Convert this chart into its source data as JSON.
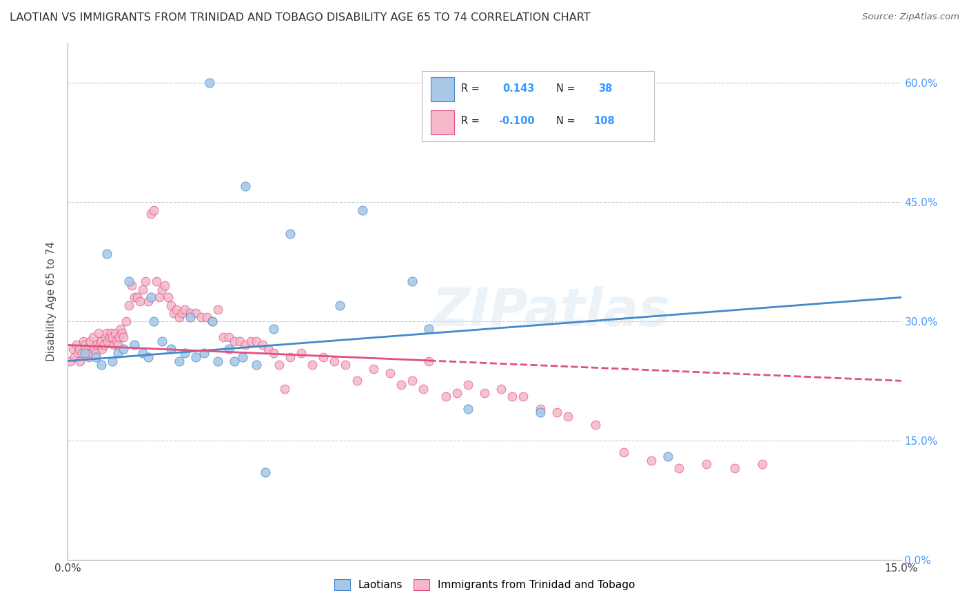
{
  "title": "LAOTIAN VS IMMIGRANTS FROM TRINIDAD AND TOBAGO DISABILITY AGE 65 TO 74 CORRELATION CHART",
  "source": "Source: ZipAtlas.com",
  "ylabel": "Disability Age 65 to 74",
  "ytick_vals": [
    0.0,
    15.0,
    30.0,
    45.0,
    60.0
  ],
  "xrange": [
    0.0,
    15.0
  ],
  "yrange": [
    0.0,
    65.0
  ],
  "watermark": "ZIPatlas",
  "color_blue": "#a8c8e8",
  "color_pink": "#f4b8c8",
  "color_blue_line": "#4488cc",
  "color_pink_line": "#e05080",
  "color_title": "#303030",
  "color_source": "#666666",
  "color_tick_right": "#4499ff",
  "blue_line_y0": 25.0,
  "blue_line_y1": 33.0,
  "pink_line_y0": 27.0,
  "pink_line_y1": 22.5,
  "pink_solid_end": 6.5,
  "blue_x": [
    2.55,
    3.2,
    4.0,
    5.3,
    0.7,
    1.1,
    1.5,
    1.55,
    2.2,
    2.6,
    3.7,
    4.9,
    6.2,
    6.5,
    7.2,
    8.5,
    10.8,
    3.55,
    0.3,
    0.5,
    0.6,
    0.8,
    0.9,
    1.0,
    1.2,
    1.35,
    1.45,
    1.7,
    1.85,
    2.0,
    2.1,
    2.3,
    2.45,
    2.7,
    2.9,
    3.0,
    3.15,
    3.4
  ],
  "blue_y": [
    60.0,
    47.0,
    41.0,
    44.0,
    38.5,
    35.0,
    33.0,
    30.0,
    30.5,
    30.0,
    29.0,
    32.0,
    35.0,
    29.0,
    19.0,
    18.5,
    13.0,
    11.0,
    26.0,
    25.5,
    24.5,
    25.0,
    26.0,
    26.5,
    27.0,
    26.0,
    25.5,
    27.5,
    26.5,
    25.0,
    26.0,
    25.5,
    26.0,
    25.0,
    26.5,
    25.0,
    25.5,
    24.5
  ],
  "pink_x": [
    0.05,
    0.1,
    0.12,
    0.15,
    0.18,
    0.2,
    0.22,
    0.25,
    0.28,
    0.3,
    0.32,
    0.35,
    0.38,
    0.4,
    0.42,
    0.45,
    0.48,
    0.5,
    0.52,
    0.55,
    0.58,
    0.6,
    0.62,
    0.65,
    0.68,
    0.7,
    0.72,
    0.75,
    0.78,
    0.8,
    0.82,
    0.85,
    0.88,
    0.9,
    0.92,
    0.95,
    0.98,
    1.0,
    1.05,
    1.1,
    1.15,
    1.2,
    1.25,
    1.3,
    1.35,
    1.4,
    1.45,
    1.5,
    1.55,
    1.6,
    1.65,
    1.7,
    1.75,
    1.8,
    1.85,
    1.9,
    1.95,
    2.0,
    2.05,
    2.1,
    2.2,
    2.3,
    2.4,
    2.5,
    2.6,
    2.7,
    2.8,
    2.9,
    3.0,
    3.1,
    3.2,
    3.3,
    3.4,
    3.5,
    3.6,
    3.7,
    3.8,
    3.9,
    4.0,
    4.2,
    4.4,
    4.6,
    4.8,
    5.0,
    5.2,
    5.5,
    5.8,
    6.0,
    6.2,
    6.4,
    6.5,
    6.8,
    7.0,
    7.2,
    7.5,
    7.8,
    8.0,
    8.2,
    8.5,
    8.8,
    9.0,
    9.5,
    10.0,
    10.5,
    11.0,
    11.5,
    12.0,
    12.5
  ],
  "pink_y": [
    25.0,
    26.5,
    25.5,
    27.0,
    26.0,
    26.5,
    25.0,
    26.0,
    27.5,
    27.0,
    26.5,
    26.0,
    25.5,
    27.5,
    26.0,
    28.0,
    26.5,
    26.0,
    27.0,
    28.5,
    27.0,
    27.5,
    26.5,
    27.0,
    28.0,
    28.5,
    27.5,
    28.0,
    28.5,
    28.0,
    27.0,
    28.5,
    27.5,
    27.0,
    28.0,
    29.0,
    28.5,
    28.0,
    30.0,
    32.0,
    34.5,
    33.0,
    33.0,
    32.5,
    34.0,
    35.0,
    32.5,
    43.5,
    44.0,
    35.0,
    33.0,
    34.0,
    34.5,
    33.0,
    32.0,
    31.0,
    31.5,
    30.5,
    31.0,
    31.5,
    31.0,
    31.0,
    30.5,
    30.5,
    30.0,
    31.5,
    28.0,
    28.0,
    27.5,
    27.5,
    27.0,
    27.5,
    27.5,
    27.0,
    26.5,
    26.0,
    24.5,
    21.5,
    25.5,
    26.0,
    24.5,
    25.5,
    25.0,
    24.5,
    22.5,
    24.0,
    23.5,
    22.0,
    22.5,
    21.5,
    25.0,
    20.5,
    21.0,
    22.0,
    21.0,
    21.5,
    20.5,
    20.5,
    19.0,
    18.5,
    18.0,
    17.0,
    13.5,
    12.5,
    11.5,
    12.0,
    11.5,
    12.0
  ]
}
